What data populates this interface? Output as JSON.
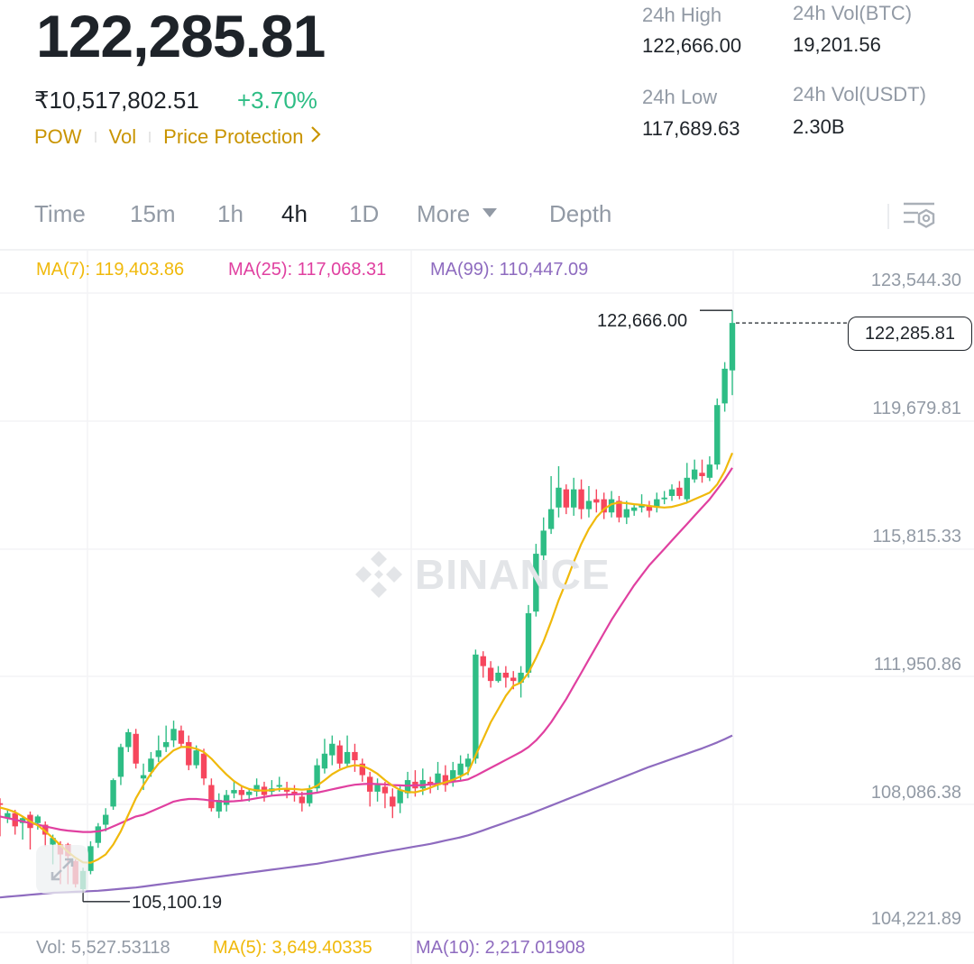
{
  "header": {
    "last_price": "122,285.81",
    "inr_price": "₹10,517,802.51",
    "change_pct": "+3.70%",
    "tags": [
      "POW",
      "Vol",
      "Price Protection"
    ],
    "stats": {
      "high_label": "24h High",
      "high_value": "122,666.00",
      "low_label": "24h Low",
      "low_value": "117,689.63",
      "vol_btc_label": "24h Vol(BTC)",
      "vol_btc_value": "19,201.56",
      "vol_usdt_label": "24h Vol(USDT)",
      "vol_usdt_value": "2.30B"
    }
  },
  "tabs": [
    {
      "label": "Time"
    },
    {
      "label": "15m"
    },
    {
      "label": "1h"
    },
    {
      "label": "4h",
      "active": true
    },
    {
      "label": "1D"
    },
    {
      "label": "More"
    },
    {
      "label": "Depth"
    }
  ],
  "ma_indicators": [
    {
      "label": "MA(7): 119,403.86",
      "color": "#f0b90b"
    },
    {
      "label": "MA(25): 117,068.31",
      "color": "#e040a0"
    },
    {
      "label": "MA(99): 110,447.09",
      "color": "#8e6bbf"
    }
  ],
  "volume_indicators": [
    {
      "label": "Vol: 5,527.53118",
      "color": "#929aa5"
    },
    {
      "label": "MA(5): 3,649.40335",
      "color": "#f0b90b"
    },
    {
      "label": "MA(10): 2,217.01908",
      "color": "#8e6bbf"
    }
  ],
  "price_axis": [
    "123,544.30",
    "119,679.81",
    "115,815.33",
    "111,950.86",
    "108,086.38",
    "104,221.89"
  ],
  "current_price_tag": "122,285.81",
  "high_marker": "122,666.00",
  "low_marker": "105,100.19",
  "watermark": "BINANCE",
  "colors": {
    "up": "#2ebd85",
    "down": "#f6465d",
    "accent": "#c99400"
  },
  "icons": {
    "more_caret": "triangle-down-icon",
    "settings": "chart-settings-icon",
    "expand": "expand-icon"
  },
  "chart_data": {
    "type": "candlestick",
    "ylim": [
      104221.89,
      123544.3
    ],
    "ticks": [
      123544.3,
      119679.81,
      115815.33,
      111950.86,
      108086.38,
      104221.89
    ],
    "grid": true,
    "candles": [
      [
        107750,
        107700,
        107900,
        106750
      ],
      [
        107300,
        107450,
        107550,
        107150
      ],
      [
        107450,
        107050,
        107550,
        106800
      ],
      [
        107150,
        107300,
        107350,
        106650
      ],
      [
        107400,
        107000,
        107500,
        106350
      ],
      [
        107150,
        107350,
        107400,
        106950
      ],
      [
        107100,
        106800,
        107200,
        106450
      ],
      [
        106500,
        106700,
        106800,
        105900
      ],
      [
        106500,
        106200,
        106600,
        105300
      ],
      [
        106500,
        106150,
        106550,
        105300
      ],
      [
        106000,
        105300,
        106050,
        105200
      ],
      [
        105150,
        105700,
        105800,
        105100
      ],
      [
        105700,
        106450,
        106600,
        105600
      ],
      [
        106550,
        107050,
        107150,
        106400
      ],
      [
        107100,
        107400,
        107600,
        106900
      ],
      [
        107650,
        108450,
        108500,
        107550
      ],
      [
        108550,
        109450,
        109550,
        108300
      ],
      [
        109450,
        109900,
        110000,
        109300
      ],
      [
        109850,
        108950,
        110000,
        108800
      ],
      [
        108500,
        108600,
        108950,
        108150
      ],
      [
        108700,
        109100,
        109300,
        108550
      ],
      [
        109150,
        109350,
        109800,
        109000
      ],
      [
        109450,
        109600,
        110100,
        109300
      ],
      [
        109650,
        110000,
        110250,
        109450
      ],
      [
        109950,
        109550,
        110100,
        109450
      ],
      [
        109600,
        108900,
        109800,
        108750
      ],
      [
        108900,
        109350,
        109500,
        108800
      ],
      [
        109250,
        108500,
        109400,
        108300
      ],
      [
        108300,
        107600,
        108500,
        107500
      ],
      [
        107500,
        107850,
        108050,
        107300
      ],
      [
        107700,
        108000,
        108150,
        107500
      ],
      [
        108050,
        108150,
        108400,
        107900
      ],
      [
        108150,
        108000,
        108300,
        107850
      ],
      [
        108000,
        108100,
        108200,
        107800
      ],
      [
        108100,
        108300,
        108500,
        107950
      ],
      [
        108250,
        108000,
        108400,
        107800
      ],
      [
        108100,
        108200,
        108450,
        108000
      ],
      [
        108250,
        108300,
        108550,
        108100
      ],
      [
        108200,
        108100,
        108400,
        107900
      ],
      [
        108100,
        108000,
        108300,
        107800
      ],
      [
        107950,
        107750,
        108100,
        107500
      ],
      [
        107750,
        108150,
        108300,
        107650
      ],
      [
        108200,
        108900,
        109100,
        108100
      ],
      [
        108800,
        109250,
        109700,
        108650
      ],
      [
        109200,
        109550,
        109800,
        108900
      ],
      [
        109500,
        108950,
        109650,
        108800
      ],
      [
        108950,
        109300,
        109800,
        108850
      ],
      [
        109300,
        109050,
        109550,
        108700
      ],
      [
        108950,
        108600,
        109100,
        108400
      ],
      [
        108550,
        108100,
        108700,
        107650
      ],
      [
        108100,
        108300,
        108500,
        107800
      ],
      [
        108250,
        108050,
        108400,
        107600
      ],
      [
        107950,
        107650,
        108200,
        107300
      ],
      [
        107750,
        108150,
        108300,
        107450
      ],
      [
        108050,
        108450,
        108700,
        107900
      ],
      [
        108400,
        108200,
        108750,
        107950
      ],
      [
        108200,
        108450,
        108800,
        108000
      ],
      [
        108400,
        108300,
        108550,
        108050
      ],
      [
        108300,
        108650,
        109000,
        108150
      ],
      [
        108600,
        108300,
        108900,
        108100
      ],
      [
        108400,
        108750,
        109000,
        108250
      ],
      [
        108600,
        108950,
        109200,
        108450
      ],
      [
        108850,
        109100,
        109250,
        108600
      ],
      [
        109100,
        112250,
        112400,
        108950
      ],
      [
        112200,
        111900,
        112350,
        111550
      ],
      [
        111850,
        111450,
        112050,
        111250
      ],
      [
        111450,
        111700,
        111900,
        111400
      ],
      [
        111700,
        111550,
        111900,
        111250
      ],
      [
        111550,
        111450,
        111750,
        111200
      ],
      [
        111400,
        111700,
        111900,
        110950
      ],
      [
        111700,
        113500,
        113750,
        111550
      ],
      [
        113550,
        115300,
        115600,
        113400
      ],
      [
        115250,
        116000,
        116400,
        115000
      ],
      [
        116050,
        116650,
        117650,
        115900
      ],
      [
        116700,
        117300,
        117950,
        116400
      ],
      [
        117250,
        116700,
        117400,
        116500
      ],
      [
        116700,
        117250,
        117600,
        116450
      ],
      [
        117250,
        116650,
        117550,
        116350
      ],
      [
        116650,
        116900,
        117350,
        116400
      ],
      [
        116950,
        116850,
        117250,
        116550
      ],
      [
        116950,
        116550,
        117150,
        116350
      ],
      [
        116550,
        116950,
        117200,
        116400
      ],
      [
        116900,
        116400,
        117050,
        116250
      ],
      [
        116400,
        116650,
        116900,
        116200
      ],
      [
        116600,
        116700,
        116800,
        116450
      ],
      [
        116700,
        116800,
        117100,
        116550
      ],
      [
        116750,
        116600,
        116900,
        116400
      ],
      [
        116700,
        116950,
        117150,
        116550
      ],
      [
        116950,
        117000,
        117200,
        116800
      ],
      [
        117050,
        117250,
        117400,
        116900
      ],
      [
        117300,
        117050,
        117500,
        116950
      ],
      [
        116950,
        117600,
        118050,
        116850
      ],
      [
        117550,
        117850,
        118150,
        117450
      ],
      [
        117750,
        117650,
        118150,
        117450
      ],
      [
        117600,
        118000,
        118250,
        117500
      ],
      [
        118000,
        119800,
        120000,
        117850
      ],
      [
        119850,
        120900,
        121100,
        119600
      ],
      [
        120850,
        122285.81,
        122666.0,
        120100
      ]
    ],
    "ma7": [
      107620,
      107560,
      107480,
      107350,
      107200,
      107080,
      106900,
      106700,
      106480,
      106280,
      106100,
      105960,
      105950,
      106050,
      106200,
      106500,
      106900,
      107400,
      107900,
      108300,
      108650,
      108950,
      109150,
      109350,
      109450,
      109450,
      109400,
      109300,
      109100,
      108850,
      108620,
      108420,
      108270,
      108180,
      108140,
      108130,
      108150,
      108180,
      108190,
      108180,
      108160,
      108180,
      108280,
      108450,
      108630,
      108760,
      108850,
      108900,
      108880,
      108780,
      108640,
      108450,
      108280,
      108150,
      108090,
      108080,
      108140,
      108220,
      108310,
      108380,
      108460,
      108560,
      108680,
      109200,
      109700,
      110200,
      110600,
      111000,
      111300,
      111400,
      111700,
      112150,
      112650,
      113250,
      113900,
      114450,
      115050,
      115600,
      116050,
      116400,
      116650,
      116800,
      116850,
      116830,
      116800,
      116780,
      116750,
      116720,
      116700,
      116720,
      116780,
      116850,
      116950,
      117050,
      117150,
      117400,
      117800,
      118350
    ],
    "ma25": [
      107350,
      107300,
      107250,
      107200,
      107150,
      107100,
      107050,
      107000,
      106950,
      106920,
      106900,
      106880,
      106880,
      106900,
      106950,
      107050,
      107150,
      107250,
      107350,
      107400,
      107500,
      107600,
      107700,
      107800,
      107850,
      107880,
      107880,
      107860,
      107830,
      107810,
      107800,
      107810,
      107830,
      107860,
      107900,
      107940,
      107980,
      108000,
      108010,
      108020,
      108030,
      108040,
      108070,
      108120,
      108170,
      108220,
      108270,
      108310,
      108330,
      108340,
      108330,
      108320,
      108300,
      108290,
      108280,
      108290,
      108300,
      108320,
      108340,
      108370,
      108400,
      108430,
      108470,
      108580,
      108700,
      108820,
      108940,
      109060,
      109180,
      109300,
      109450,
      109650,
      109900,
      110200,
      110550,
      110900,
      111300,
      111700,
      112100,
      112500,
      112900,
      113300,
      113650,
      114000,
      114350,
      114650,
      114950,
      115200,
      115450,
      115700,
      115950,
      116200,
      116450,
      116700,
      116950,
      117250,
      117550,
      117900
    ],
    "ma99": [
      104900,
      104920,
      104940,
      104960,
      104980,
      105000,
      105020,
      105040,
      105050,
      105060,
      105070,
      105080,
      105090,
      105100,
      105120,
      105140,
      105160,
      105180,
      105200,
      105230,
      105260,
      105290,
      105320,
      105350,
      105380,
      105410,
      105440,
      105470,
      105500,
      105530,
      105560,
      105590,
      105620,
      105650,
      105680,
      105710,
      105740,
      105770,
      105800,
      105830,
      105860,
      105890,
      105920,
      105960,
      106000,
      106040,
      106080,
      106120,
      106160,
      106200,
      106240,
      106280,
      106320,
      106360,
      106400,
      106440,
      106480,
      106520,
      106570,
      106620,
      106670,
      106720,
      106780,
      106850,
      106930,
      107010,
      107090,
      107170,
      107250,
      107330,
      107410,
      107500,
      107590,
      107680,
      107770,
      107860,
      107950,
      108040,
      108130,
      108220,
      108310,
      108400,
      108490,
      108580,
      108670,
      108760,
      108850,
      108930,
      109010,
      109090,
      109170,
      109250,
      109330,
      109410,
      109500,
      109590,
      109690,
      109800
    ]
  }
}
